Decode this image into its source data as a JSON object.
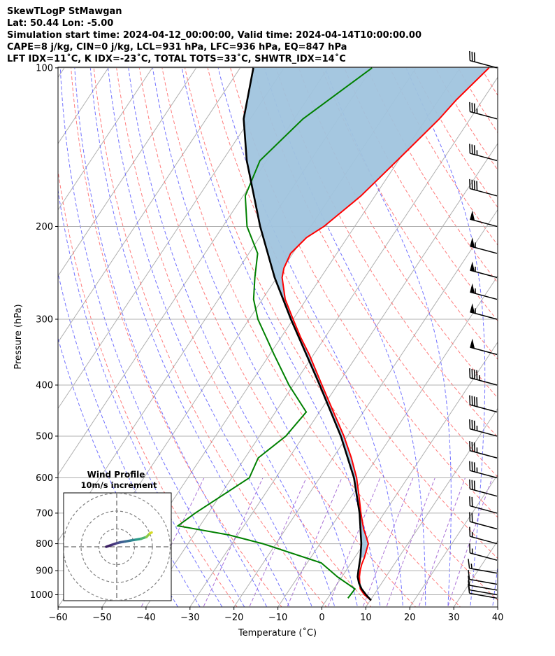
{
  "header": {
    "line1": "SkewTLogP StMawgan",
    "line2": "Lat: 50.44   Lon: -5.00",
    "line3": "Simulation start time: 2024-04-12_00:00:00, Valid time: 2024-04-14T10:00:00.00",
    "line4": "CAPE=8 j/kg, CIN=0 j/kg, LCL=931 hPa, LFC=936 hPa, EQ=847 hPa",
    "line5": "LFT IDX=11˚C, K IDX=-23˚C, TOTAL TOTS=33˚C, SHWTR_IDX=14˚C"
  },
  "chart_data": {
    "type": "line",
    "title": "SkewTLogP StMawgan",
    "xlabel": "Temperature (˚C)",
    "ylabel": "Pressure (hPa)",
    "xlim": [
      -60,
      40
    ],
    "ylim": [
      1050,
      100
    ],
    "yscale": "log",
    "skew": true,
    "grid": true,
    "x_ticks": [
      -60,
      -50,
      -40,
      -30,
      -20,
      -10,
      0,
      10,
      20,
      30,
      40
    ],
    "y_ticks": [
      100,
      200,
      300,
      400,
      500,
      600,
      700,
      800,
      900,
      1000
    ],
    "colors": {
      "temperature": "#ff0000",
      "dewpoint": "#008000",
      "parcel": "#000000",
      "cape_fill": "#a0c4de",
      "dry_adiabat": "#ff6666",
      "moist_adiabat": "#5a5aff",
      "mixing_ratio": "#9b59d0",
      "isotherm": "#b0b0b0"
    },
    "series": [
      {
        "key": "temperature",
        "points": [
          [
            1025,
            10.2
          ],
          [
            1000,
            7.8
          ],
          [
            975,
            6.0
          ],
          [
            950,
            5.0
          ],
          [
            925,
            4.0
          ],
          [
            900,
            3.2
          ],
          [
            875,
            2.6
          ],
          [
            850,
            2.2
          ],
          [
            800,
            1.0
          ],
          [
            775,
            -0.6
          ],
          [
            750,
            -2.3
          ],
          [
            700,
            -5.3
          ],
          [
            650,
            -8.3
          ],
          [
            600,
            -11.6
          ],
          [
            550,
            -15.8
          ],
          [
            500,
            -20.8
          ],
          [
            450,
            -26.8
          ],
          [
            400,
            -33.5
          ],
          [
            350,
            -41.0
          ],
          [
            325,
            -45.5
          ],
          [
            300,
            -50.0
          ],
          [
            275,
            -54.8
          ],
          [
            250,
            -58.8
          ],
          [
            240,
            -59.8
          ],
          [
            225,
            -60.5
          ],
          [
            210,
            -59.3
          ],
          [
            200,
            -57.0
          ],
          [
            175,
            -53.2
          ],
          [
            150,
            -50.3
          ],
          [
            125,
            -47.0
          ],
          [
            115,
            -46.0
          ],
          [
            100,
            -43.4
          ]
        ]
      },
      {
        "key": "dewpoint",
        "points": [
          [
            1015,
            4.6
          ],
          [
            975,
            4.8
          ],
          [
            925,
            -1.0
          ],
          [
            870,
            -6.8
          ],
          [
            800,
            -23.0
          ],
          [
            770,
            -32.0
          ],
          [
            740,
            -45.0
          ],
          [
            700,
            -43.0
          ],
          [
            600,
            -36.0
          ],
          [
            550,
            -37.0
          ],
          [
            500,
            -34.0
          ],
          [
            450,
            -33.0
          ],
          [
            400,
            -41.0
          ],
          [
            350,
            -49.0
          ],
          [
            300,
            -58.0
          ],
          [
            275,
            -62.0
          ],
          [
            250,
            -65.0
          ],
          [
            225,
            -68.0
          ],
          [
            200,
            -74.5
          ],
          [
            175,
            -79.5
          ],
          [
            150,
            -81.5
          ],
          [
            125,
            -78.0
          ],
          [
            100,
            -70.0
          ]
        ]
      },
      {
        "key": "parcel",
        "points": [
          [
            1025,
            10.2
          ],
          [
            1000,
            8.2
          ],
          [
            975,
            6.3
          ],
          [
            950,
            4.8
          ],
          [
            925,
            3.6
          ],
          [
            900,
            2.8
          ],
          [
            850,
            1.3
          ],
          [
            800,
            -0.6
          ],
          [
            700,
            -5.6
          ],
          [
            600,
            -12.2
          ],
          [
            500,
            -21.5
          ],
          [
            400,
            -34.0
          ],
          [
            300,
            -50.5
          ],
          [
            250,
            -60.5
          ],
          [
            200,
            -71.5
          ],
          [
            150,
            -84.5
          ],
          [
            125,
            -91.5
          ],
          [
            100,
            -97.0
          ]
        ]
      }
    ],
    "wind_barbs": [
      {
        "p": 1015,
        "speed": 10,
        "dir": 280
      },
      {
        "p": 1000,
        "speed": 10,
        "dir": 280
      },
      {
        "p": 980,
        "speed": 10,
        "dir": 280
      },
      {
        "p": 955,
        "speed": 10,
        "dir": 280
      },
      {
        "p": 910,
        "speed": 15,
        "dir": 280
      },
      {
        "p": 860,
        "speed": 15,
        "dir": 285
      },
      {
        "p": 800,
        "speed": 15,
        "dir": 285
      },
      {
        "p": 750,
        "speed": 20,
        "dir": 285
      },
      {
        "p": 700,
        "speed": 20,
        "dir": 285
      },
      {
        "p": 650,
        "speed": 30,
        "dir": 285
      },
      {
        "p": 600,
        "speed": 35,
        "dir": 285
      },
      {
        "p": 550,
        "speed": 35,
        "dir": 285
      },
      {
        "p": 500,
        "speed": 35,
        "dir": 285
      },
      {
        "p": 450,
        "speed": 40,
        "dir": 285
      },
      {
        "p": 400,
        "speed": 45,
        "dir": 285
      },
      {
        "p": 350,
        "speed": 50,
        "dir": 285
      },
      {
        "p": 300,
        "speed": 55,
        "dir": 285
      },
      {
        "p": 275,
        "speed": 55,
        "dir": 285
      },
      {
        "p": 250,
        "speed": 55,
        "dir": 285
      },
      {
        "p": 225,
        "speed": 55,
        "dir": 285
      },
      {
        "p": 200,
        "speed": 50,
        "dir": 285
      },
      {
        "p": 175,
        "speed": 40,
        "dir": 285
      },
      {
        "p": 150,
        "speed": 35,
        "dir": 285
      },
      {
        "p": 125,
        "speed": 35,
        "dir": 285
      },
      {
        "p": 100,
        "speed": 30,
        "dir": 285
      }
    ],
    "hodograph": {
      "title": "Wind Profile",
      "subtitle": "10m/s increment",
      "rings": [
        10,
        20,
        30
      ],
      "path": [
        [
          2,
          0
        ],
        [
          5,
          1
        ],
        [
          8,
          2
        ],
        [
          10,
          2.5
        ],
        [
          13,
          3.0
        ],
        [
          16,
          3.5
        ],
        [
          19,
          4.0
        ],
        [
          22,
          4.5
        ],
        [
          25,
          5.5
        ],
        [
          27,
          7.5
        ],
        [
          28,
          8.0
        ]
      ]
    }
  }
}
